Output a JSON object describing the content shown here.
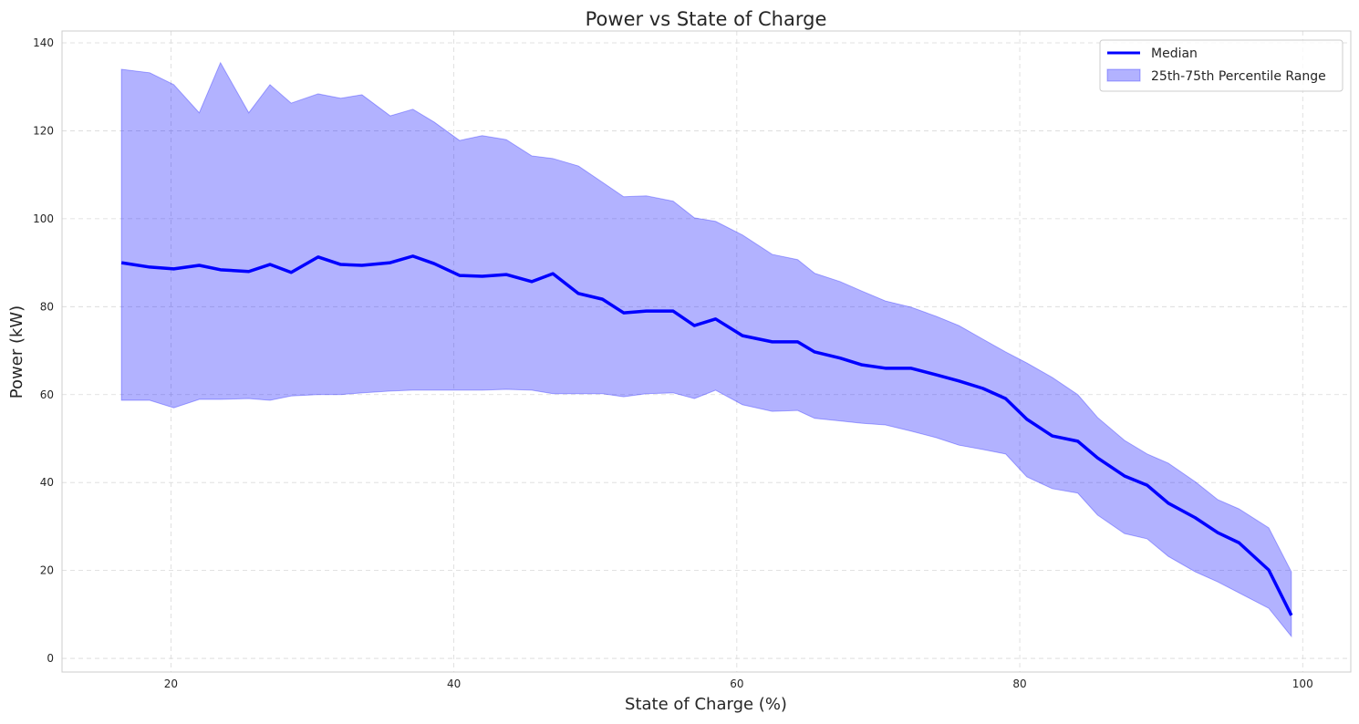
{
  "chart_data": {
    "type": "line",
    "title": "Power vs State of Charge",
    "xlabel": "State of Charge (%)",
    "ylabel": "Power (kW)",
    "xlim": [
      12.3,
      103.4
    ],
    "ylim": [
      -3.1,
      142.7
    ],
    "xticks": [
      20,
      40,
      60,
      80,
      100
    ],
    "yticks": [
      0,
      20,
      40,
      60,
      80,
      100,
      120,
      140
    ],
    "grid": true,
    "legend_position": "top-right",
    "x": [
      16.5,
      18.5,
      20.2,
      22.0,
      23.5,
      25.5,
      27.0,
      28.5,
      30.4,
      32.0,
      33.5,
      35.5,
      37.1,
      38.6,
      40.4,
      42.0,
      43.7,
      45.5,
      47.0,
      48.8,
      50.5,
      52.0,
      53.6,
      55.5,
      57.0,
      58.5,
      60.4,
      62.5,
      64.3,
      65.5,
      67.3,
      68.8,
      70.5,
      72.3,
      74.1,
      75.7,
      77.4,
      79.0,
      80.5,
      82.3,
      84.1,
      85.5,
      87.4,
      89.0,
      90.5,
      92.4,
      94.0,
      95.5,
      97.6,
      99.2
    ],
    "series": [
      {
        "name": "Median",
        "kind": "line",
        "color": "#0000ff",
        "values": [
          90.0,
          89.0,
          88.6,
          89.4,
          88.4,
          88.0,
          89.6,
          87.8,
          91.3,
          89.6,
          89.4,
          90.0,
          91.5,
          89.8,
          87.1,
          86.9,
          87.3,
          85.7,
          87.5,
          83.0,
          81.7,
          78.6,
          79.0,
          79.0,
          75.7,
          77.2,
          73.4,
          72.0,
          72.0,
          69.7,
          68.3,
          66.8,
          66.0,
          66.0,
          64.5,
          63.1,
          61.4,
          59.1,
          54.4,
          50.6,
          49.4,
          45.6,
          41.5,
          39.4,
          35.3,
          32.0,
          28.6,
          26.3,
          20.1,
          9.8
        ]
      },
      {
        "name": "25th-75th Percentile Range",
        "kind": "band",
        "color": "#0000ff",
        "alpha": 0.3,
        "lower": [
          58.7,
          58.7,
          57.0,
          58.9,
          58.9,
          59.1,
          58.7,
          59.7,
          60.0,
          60.0,
          60.4,
          60.8,
          61.0,
          61.0,
          61.0,
          61.0,
          61.2,
          61.0,
          60.2,
          60.2,
          60.2,
          59.5,
          60.2,
          60.4,
          59.1,
          61.0,
          57.7,
          56.2,
          56.4,
          54.6,
          54.0,
          53.5,
          53.1,
          51.7,
          50.2,
          48.5,
          47.5,
          46.5,
          41.3,
          38.6,
          37.6,
          32.6,
          28.4,
          27.2,
          23.2,
          19.7,
          17.4,
          14.9,
          11.4,
          5.0
        ],
        "upper": [
          134.0,
          133.2,
          130.5,
          124.1,
          135.5,
          124.1,
          130.5,
          126.3,
          128.4,
          127.4,
          128.2,
          123.4,
          124.9,
          122.0,
          117.8,
          118.9,
          118.0,
          114.3,
          113.7,
          112.0,
          108.3,
          105.0,
          105.2,
          104.0,
          100.2,
          99.4,
          96.3,
          91.9,
          90.7,
          87.6,
          85.7,
          83.6,
          81.3,
          79.9,
          77.8,
          75.7,
          72.6,
          69.7,
          67.2,
          63.9,
          60.0,
          54.8,
          49.6,
          46.5,
          44.4,
          40.2,
          36.1,
          34.0,
          29.7,
          19.7
        ]
      }
    ]
  }
}
